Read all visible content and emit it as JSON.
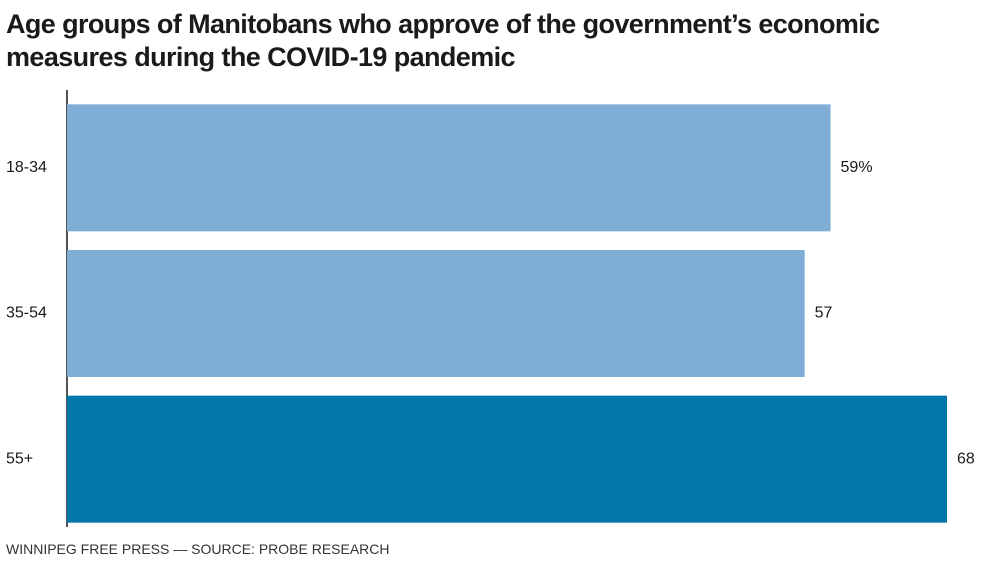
{
  "title": "Age groups of Manitobans who approve of the government’s economic measures during the COVID-19 pandemic",
  "source": "WINNIPEG FREE PRESS — SOURCE: PROBE RESEARCH",
  "chart_data": {
    "type": "bar",
    "orientation": "horizontal",
    "title": "Age groups of Manitobans who approve of the government’s economic measures during the COVID-19 pandemic",
    "categories": [
      "18-34",
      "35-54",
      "55+"
    ],
    "values": [
      59,
      57,
      68
    ],
    "value_labels": [
      "59%",
      "57",
      "68"
    ],
    "unit": "%",
    "colors": [
      "#7eaed6",
      "#7eaed6",
      "#0077a8"
    ],
    "xlim": [
      0,
      68
    ],
    "grid": false,
    "legend": "none"
  }
}
